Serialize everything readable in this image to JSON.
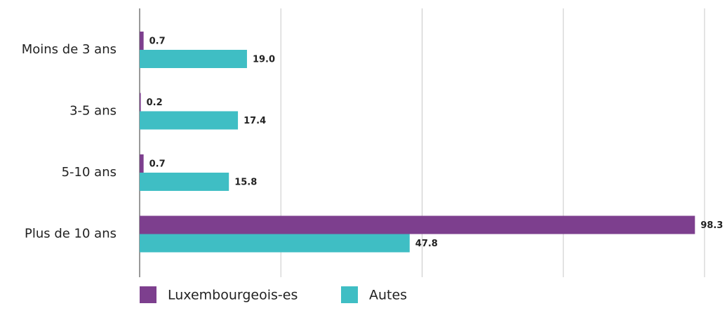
{
  "chart_data": {
    "type": "hbar",
    "categories": [
      "Moins de 3 ans",
      "3-5 ans",
      "5-10 ans",
      "Plus de 10 ans"
    ],
    "series": [
      {
        "name": "Luxembourgeois-es",
        "color": "#7d3f8e",
        "values": [
          0.7,
          0.2,
          0.7,
          98.3
        ]
      },
      {
        "name": "Autes",
        "color": "#3fbec4",
        "values": [
          19.0,
          17.4,
          15.8,
          47.8
        ],
        "value_labels": [
          "19.0",
          "17.4",
          "15.8",
          "47.8"
        ]
      }
    ],
    "xlim": [
      0,
      100
    ],
    "xticks": [
      0,
      25,
      50,
      75,
      100
    ],
    "grid": true,
    "legend": "bottom"
  }
}
